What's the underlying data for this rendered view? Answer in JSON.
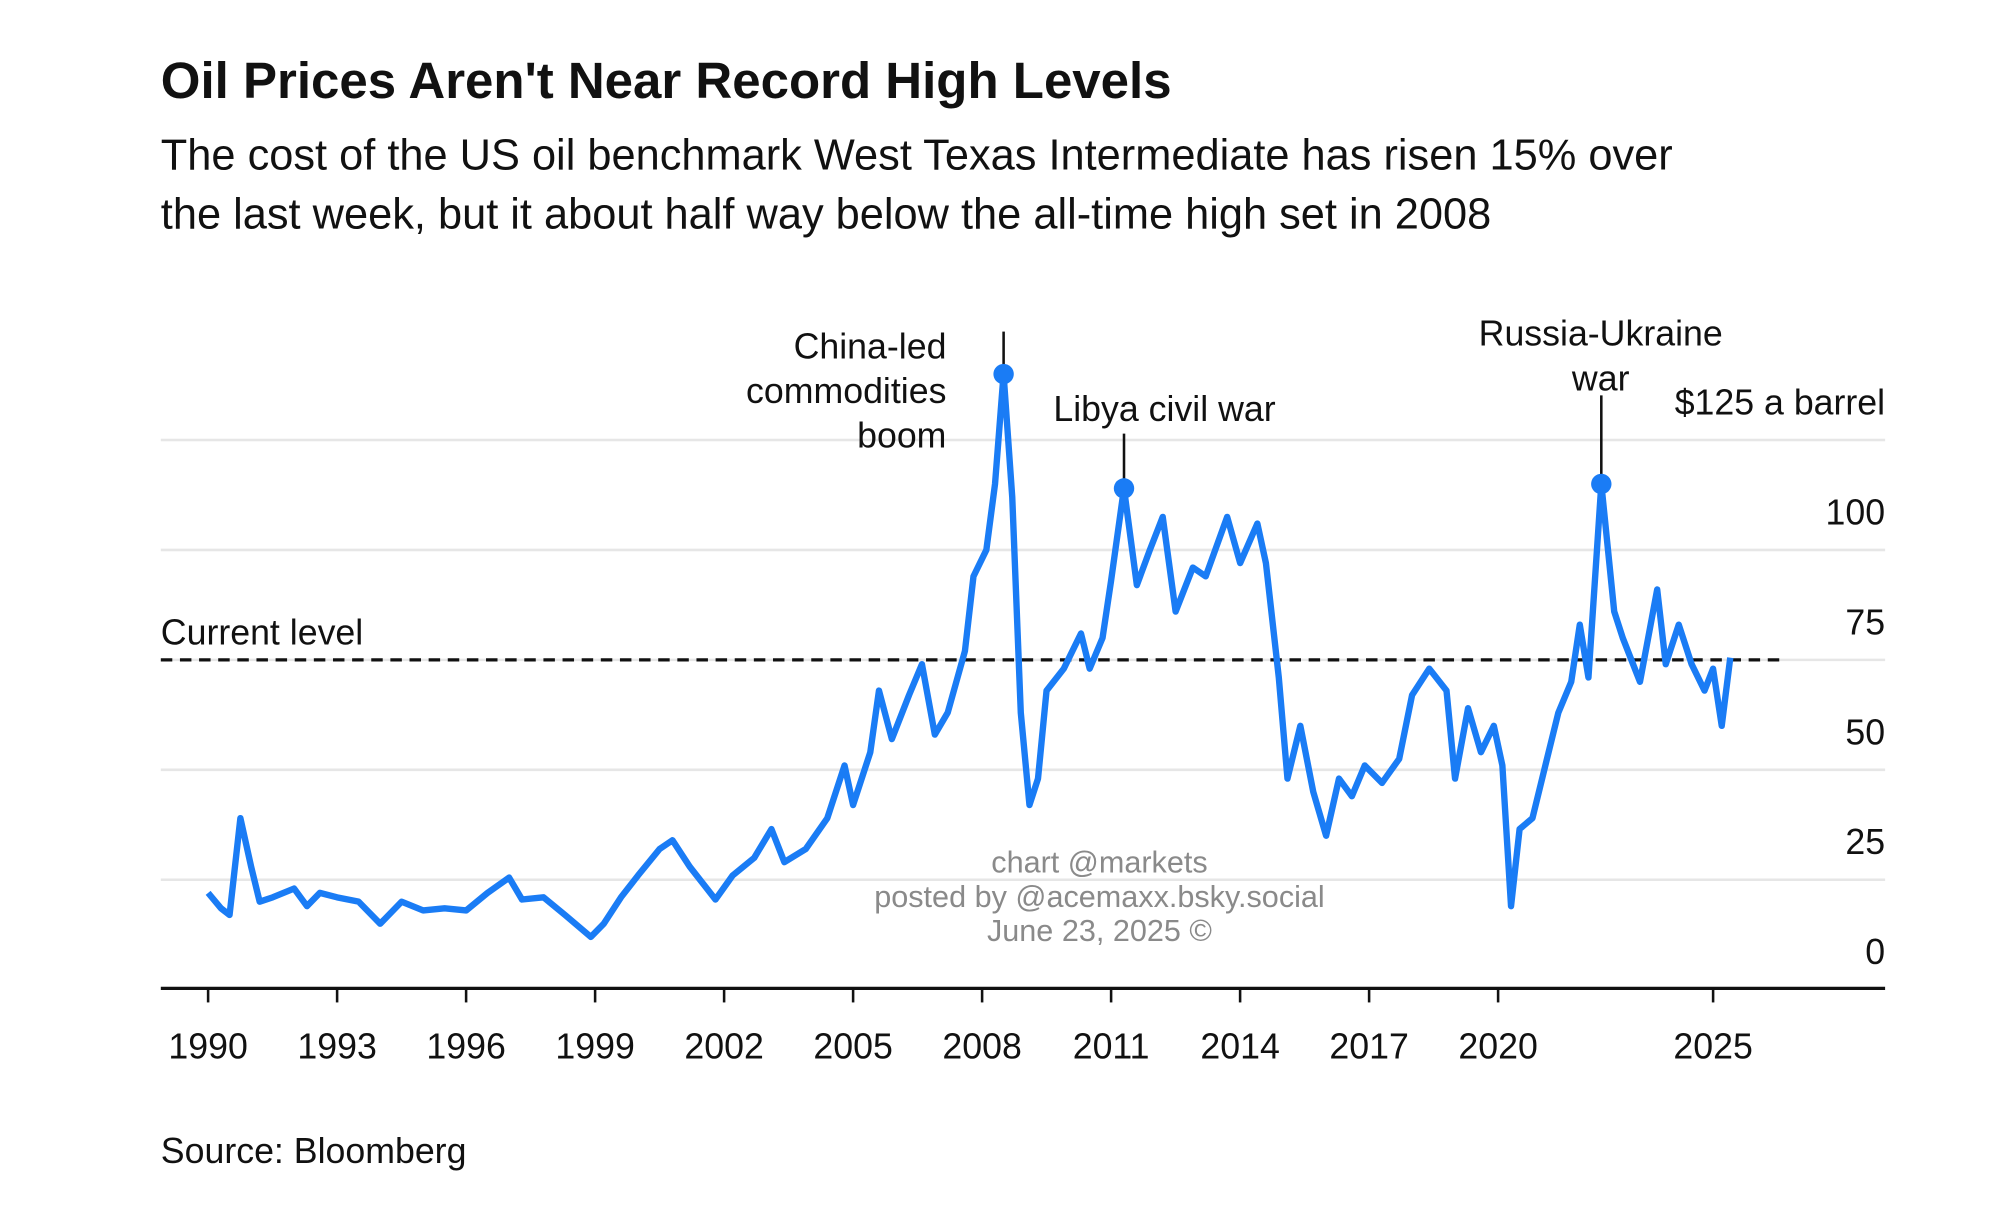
{
  "chart_data": {
    "type": "line",
    "title": "Oil Prices Aren't Near Record High Levels",
    "subtitle": [
      "The cost of the US oil benchmark West Texas Intermediate has risen 15% over",
      "the last week, but it about half way below the all-time high set in 2008"
    ],
    "source": "Source: Bloomberg",
    "watermark": [
      "chart @markets",
      "posted by @acemaxx.bsky.social",
      "June 23, 2025 ©"
    ],
    "x": [
      1990.0,
      1990.3,
      1990.5,
      1990.75,
      1991.0,
      1991.2,
      1991.5,
      1992.0,
      1992.3,
      1992.6,
      1993.0,
      1993.5,
      1994.0,
      1994.5,
      1995.0,
      1995.5,
      1996.0,
      1996.5,
      1997.0,
      1997.3,
      1997.8,
      1998.3,
      1998.9,
      1999.2,
      1999.6,
      2000.0,
      2000.5,
      2000.8,
      2001.2,
      2001.8,
      2002.2,
      2002.7,
      2003.1,
      2003.4,
      2003.9,
      2004.4,
      2004.8,
      2005.0,
      2005.4,
      2005.6,
      2005.9,
      2006.3,
      2006.6,
      2006.9,
      2007.2,
      2007.6,
      2007.8,
      2008.1,
      2008.3,
      2008.5,
      2008.7,
      2008.9,
      2009.1,
      2009.3,
      2009.5,
      2009.9,
      2010.3,
      2010.5,
      2010.8,
      2011.0,
      2011.3,
      2011.6,
      2011.9,
      2012.2,
      2012.5,
      2012.9,
      2013.2,
      2013.7,
      2014.0,
      2014.4,
      2014.6,
      2014.9,
      2015.1,
      2015.4,
      2015.7,
      2016.0,
      2016.3,
      2016.6,
      2016.9,
      2017.3,
      2017.7,
      2018.0,
      2018.4,
      2018.8,
      2019.0,
      2019.3,
      2019.6,
      2019.9,
      2020.1,
      2020.3,
      2020.5,
      2020.8,
      2021.1,
      2021.4,
      2021.7,
      2021.9,
      2022.1,
      2022.4,
      2022.7,
      2022.9,
      2023.3,
      2023.7,
      2023.9,
      2024.2,
      2024.5,
      2024.8,
      2025.0,
      2025.2,
      2025.4
    ],
    "series": [
      {
        "name": "WTI",
        "color": "#1a7cf5",
        "values": [
          22,
          18.5,
          17,
          39,
          28,
          20,
          21,
          23,
          19,
          22,
          21,
          20,
          15,
          20,
          18,
          18.5,
          18,
          22,
          25.5,
          20.5,
          21,
          17,
          12,
          15,
          21,
          26,
          32,
          34,
          28,
          20.5,
          26,
          30,
          36.5,
          29,
          32,
          39,
          51,
          42,
          54,
          68,
          57,
          67,
          74,
          58,
          63,
          77,
          94,
          100,
          115,
          140,
          112,
          63,
          42,
          48,
          68,
          73,
          81,
          73,
          80,
          93,
          114,
          92,
          100,
          107.5,
          86,
          96,
          94,
          107.5,
          97,
          106,
          97,
          71,
          48,
          60,
          45,
          35,
          48,
          44,
          51,
          47,
          52.5,
          67,
          73,
          68,
          48,
          64,
          54,
          60,
          51,
          19,
          36.5,
          39,
          51,
          63,
          70,
          83,
          71,
          115,
          86,
          80,
          70,
          91,
          74,
          83,
          74,
          68,
          73,
          60,
          75.5
        ]
      }
    ],
    "xlim": [
      1988.9,
      2029
    ],
    "xticks": [
      1990,
      1993,
      1996,
      1999,
      2002,
      2005,
      2008,
      2011,
      2014,
      2017,
      2020,
      2025
    ],
    "ylim": [
      0,
      140
    ],
    "yticks": [
      0,
      25,
      50,
      75,
      100,
      {
        "value": 125,
        "label": "$125 a barrel"
      }
    ],
    "grid": true,
    "current_level": {
      "label": "Current level",
      "value": 75
    },
    "annotations": [
      {
        "text": [
          "China-led",
          "commodities",
          "boom"
        ],
        "x": 2008.5,
        "y": 140
      },
      {
        "text": [
          "Libya civil war"
        ],
        "x": 2011.3,
        "y": 114
      },
      {
        "text": [
          "Russia-Ukraine",
          "war"
        ],
        "x": 2022.4,
        "y": 115
      }
    ]
  }
}
